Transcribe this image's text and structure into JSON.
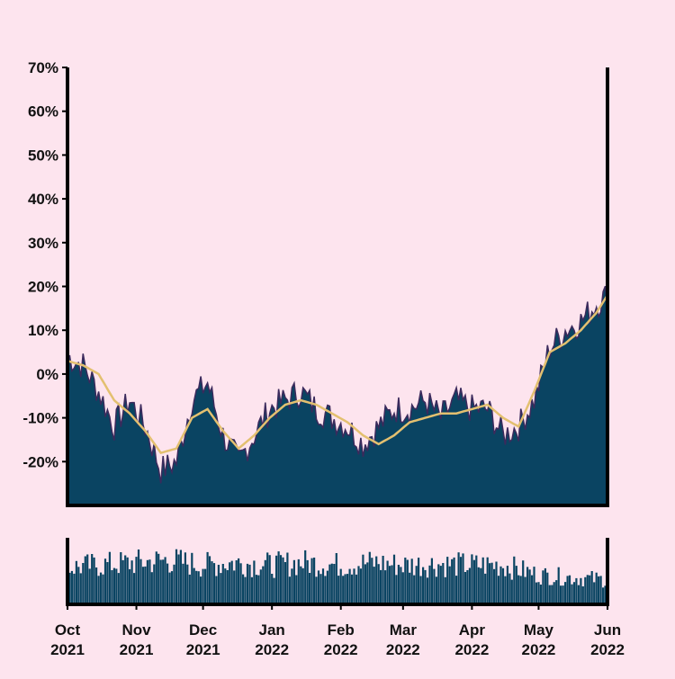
{
  "colors": {
    "background": "#fde4ee",
    "area_fill": "#0a4462",
    "area_outline": "#3b2a5c",
    "moving_average": "#e3c070",
    "volume_bars": "#0a4462",
    "axis": "#000000"
  },
  "chart_data": [
    {
      "type": "area",
      "panel": "main",
      "title": "",
      "xlabel": "",
      "ylabel": "",
      "x_range": [
        "2021-10-01",
        "2022-06-01"
      ],
      "ylim": [
        -30,
        70
      ],
      "y_ticks": [
        -20,
        -10,
        0,
        10,
        20,
        30,
        40,
        50,
        60,
        70
      ],
      "y_tick_labels": [
        "-20%",
        "-10%",
        "0%",
        "10%",
        "20%",
        "30%",
        "40%",
        "50%",
        "60%",
        "70%"
      ],
      "grid": false,
      "series": [
        {
          "kind": "daily-area",
          "x": [
            "2021-10-01",
            "2021-10-08",
            "2021-10-15",
            "2021-10-22",
            "2021-10-29",
            "2021-11-05",
            "2021-11-12",
            "2021-11-19",
            "2021-11-26",
            "2021-12-03",
            "2021-12-10",
            "2021-12-17",
            "2021-12-24",
            "2021-12-31",
            "2022-01-07",
            "2022-01-14",
            "2022-01-21",
            "2022-01-28",
            "2022-02-04",
            "2022-02-11",
            "2022-02-18",
            "2022-02-25",
            "2022-03-04",
            "2022-03-11",
            "2022-03-18",
            "2022-03-25",
            "2022-04-01",
            "2022-04-08",
            "2022-04-15",
            "2022-04-22",
            "2022-04-29",
            "2022-05-06",
            "2022-05-13",
            "2022-05-20",
            "2022-05-27",
            "2022-06-01"
          ],
          "values": [
            4,
            2,
            -4,
            -12,
            -6,
            -12,
            -22,
            -20,
            -6,
            -2,
            -14,
            -20,
            -14,
            -8,
            -6,
            -4,
            -8,
            -10,
            -12,
            -16,
            -12,
            -8,
            -8,
            -6,
            -10,
            -6,
            -8,
            -8,
            -14,
            -12,
            -6,
            6,
            10,
            12,
            16,
            18
          ]
        },
        {
          "kind": "moving-average",
          "x": [
            "2021-10-01",
            "2021-10-08",
            "2021-10-15",
            "2021-10-22",
            "2021-10-29",
            "2021-11-05",
            "2021-11-12",
            "2021-11-19",
            "2021-11-26",
            "2021-12-03",
            "2021-12-10",
            "2021-12-17",
            "2021-12-24",
            "2021-12-31",
            "2022-01-07",
            "2022-01-14",
            "2022-01-21",
            "2022-01-28",
            "2022-02-04",
            "2022-02-11",
            "2022-02-18",
            "2022-02-25",
            "2022-03-04",
            "2022-03-11",
            "2022-03-18",
            "2022-03-25",
            "2022-04-01",
            "2022-04-08",
            "2022-04-15",
            "2022-04-22",
            "2022-04-29",
            "2022-05-06",
            "2022-05-13",
            "2022-05-20",
            "2022-05-27",
            "2022-06-01"
          ],
          "values": [
            3,
            2,
            0,
            -6,
            -9,
            -13,
            -18,
            -17,
            -10,
            -8,
            -13,
            -17,
            -14,
            -10,
            -7,
            -6,
            -7,
            -9,
            -11,
            -14,
            -16,
            -14,
            -11,
            -10,
            -9,
            -9,
            -8,
            -7,
            -10,
            -12,
            -4,
            5,
            7,
            10,
            14,
            18
          ]
        }
      ]
    },
    {
      "type": "bar",
      "panel": "volume",
      "title": "",
      "ylabel": "",
      "x_range": [
        "2021-10-01",
        "2022-06-01"
      ],
      "note_values": "relative daily volume (no y scale printed)",
      "series": [
        {
          "x": [
            "2021-10-01",
            "2021-10-15",
            "2021-11-01",
            "2021-11-15",
            "2021-12-01",
            "2021-12-15",
            "2022-01-01",
            "2022-01-15",
            "2022-02-01",
            "2022-02-15",
            "2022-03-01",
            "2022-03-15",
            "2022-04-01",
            "2022-04-15",
            "2022-05-01",
            "2022-05-15",
            "2022-06-01"
          ],
          "values": [
            0.75,
            0.8,
            0.85,
            0.9,
            0.8,
            0.85,
            0.8,
            0.85,
            0.8,
            0.85,
            0.8,
            0.82,
            0.8,
            0.8,
            0.6,
            0.55,
            0.5
          ]
        }
      ],
      "x_tick_labels": [
        {
          "month": "Oct",
          "year": "2021"
        },
        {
          "month": "Nov",
          "year": "2021"
        },
        {
          "month": "Dec",
          "year": "2021"
        },
        {
          "month": "Jan",
          "year": "2022"
        },
        {
          "month": "Feb",
          "year": "2022"
        },
        {
          "month": "Mar",
          "year": "2022"
        },
        {
          "month": "Apr",
          "year": "2022"
        },
        {
          "month": "May",
          "year": "2022"
        },
        {
          "month": "Jun",
          "year": "2022"
        }
      ],
      "x_tick_dates": [
        "2021-10-01",
        "2021-11-01",
        "2021-12-01",
        "2022-01-01",
        "2022-02-01",
        "2022-03-01",
        "2022-04-01",
        "2022-05-01",
        "2022-06-01"
      ]
    }
  ]
}
